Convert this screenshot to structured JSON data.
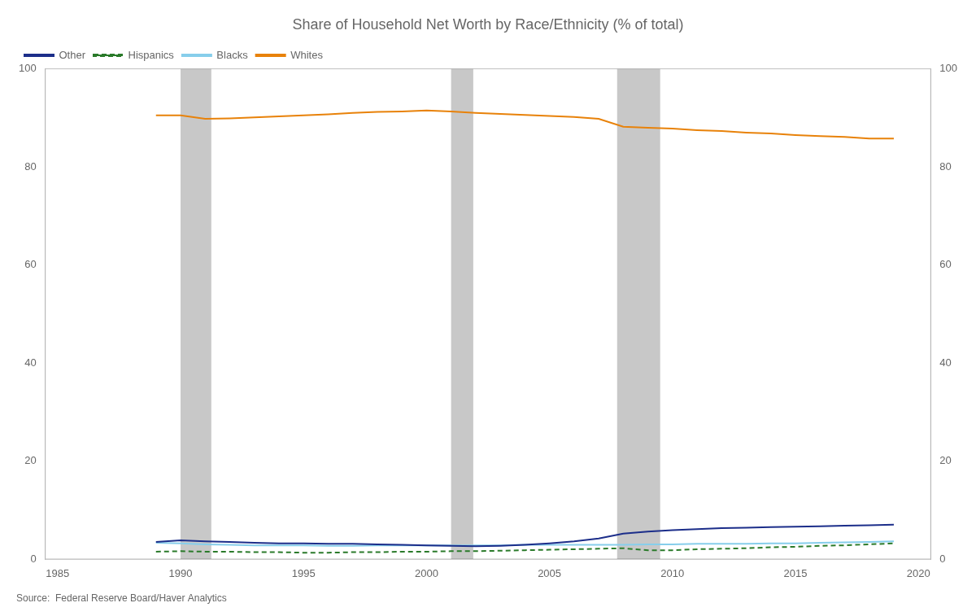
{
  "chart_data": {
    "type": "line",
    "title": "Share of Household Net Worth by Race/Ethnicity (% of total)",
    "annotations": [
      "Source:  Federal Reserve Board/Haver Analytics"
    ],
    "x": [
      1989,
      1990,
      1991,
      1992,
      1993,
      1994,
      1995,
      1996,
      1997,
      1998,
      1999,
      2000,
      2001,
      2002,
      2003,
      2004,
      2005,
      2006,
      2007,
      2008,
      2009,
      2010,
      2011,
      2012,
      2013,
      2014,
      2015,
      2016,
      2017,
      2018,
      2019
    ],
    "series": [
      {
        "name": "Other",
        "color": "#1C2E8A",
        "line_style": "solid",
        "values": [
          3.5,
          3.8,
          3.6,
          3.5,
          3.3,
          3.2,
          3.2,
          3.1,
          3.1,
          3.0,
          2.9,
          2.8,
          2.7,
          2.6,
          2.7,
          2.9,
          3.2,
          3.6,
          4.2,
          5.2,
          5.6,
          5.9,
          6.1,
          6.3,
          6.4,
          6.5,
          6.6,
          6.7,
          6.8,
          6.9,
          7.0
        ]
      },
      {
        "name": "Hispanics",
        "color": "#2A7A2A",
        "line_style": "dashed",
        "values": [
          1.5,
          1.6,
          1.5,
          1.5,
          1.4,
          1.4,
          1.3,
          1.3,
          1.4,
          1.4,
          1.5,
          1.5,
          1.6,
          1.6,
          1.7,
          1.8,
          1.9,
          2.0,
          2.1,
          2.2,
          1.8,
          1.8,
          2.0,
          2.1,
          2.2,
          2.4,
          2.5,
          2.7,
          2.8,
          3.0,
          3.2
        ]
      },
      {
        "name": "Blacks",
        "color": "#87CEEB",
        "line_style": "solid",
        "values": [
          3.3,
          3.2,
          3.0,
          2.9,
          2.8,
          2.8,
          2.8,
          2.7,
          2.7,
          2.8,
          2.8,
          2.8,
          2.8,
          2.8,
          2.8,
          2.9,
          2.9,
          2.9,
          2.9,
          2.9,
          3.0,
          3.0,
          3.1,
          3.1,
          3.1,
          3.2,
          3.2,
          3.3,
          3.4,
          3.5,
          3.6
        ]
      },
      {
        "name": "Whites",
        "color": "#E8820A",
        "line_style": "solid",
        "values": [
          90.5,
          90.5,
          89.8,
          89.9,
          90.1,
          90.3,
          90.5,
          90.7,
          91.0,
          91.2,
          91.3,
          91.5,
          91.3,
          91.0,
          90.8,
          90.6,
          90.4,
          90.2,
          89.8,
          88.2,
          88.0,
          87.8,
          87.5,
          87.3,
          87.0,
          86.8,
          86.5,
          86.3,
          86.1,
          85.8,
          85.8
        ]
      }
    ],
    "recession_bands": [
      {
        "from": 1990.0,
        "to": 1991.25,
        "color": "#C8C8C8"
      },
      {
        "from": 2001.0,
        "to": 2001.9,
        "color": "#C8C8C8"
      },
      {
        "from": 2007.75,
        "to": 2009.5,
        "color": "#C8C8C8"
      }
    ],
    "xlim": [
      1984.5,
      2020.5
    ],
    "xticks": [
      1985,
      1990,
      1995,
      2000,
      2005,
      2010,
      2015,
      2020
    ],
    "ylim": [
      0,
      100
    ],
    "yticks": [
      0,
      20,
      40,
      60,
      80,
      100
    ],
    "y2lim": [
      0,
      100
    ],
    "y2ticks": [
      0,
      20,
      40,
      60,
      80,
      100
    ],
    "grid": false,
    "legend": "upper left"
  }
}
